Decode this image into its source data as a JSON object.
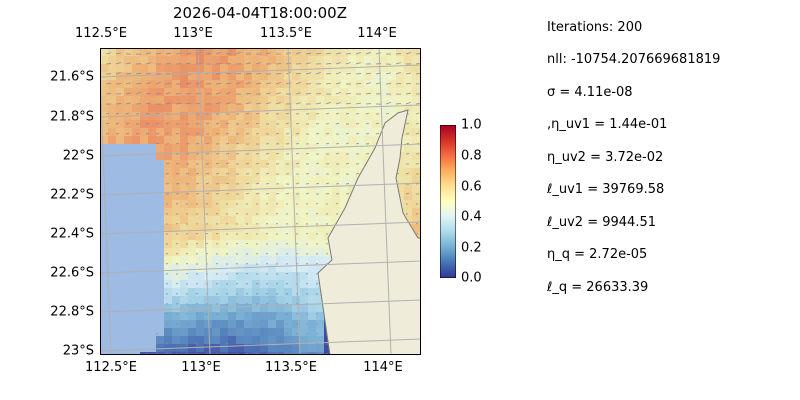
{
  "title": "2026-04-04T18:00:00Z",
  "map": {
    "lon_labels": [
      "112.5°E",
      "113°E",
      "113.5°E",
      "114°E"
    ],
    "lat_labels": [
      "21.6°S",
      "21.8°S",
      "22°S",
      "22.2°S",
      "22.4°S",
      "22.6°S",
      "22.8°S",
      "23°S"
    ],
    "colors": {
      "ocean": "#9dbbe3",
      "land": "#efedd9",
      "grid": "#b0b0b0",
      "arrow": "#8a8a9a"
    }
  },
  "colorbar": {
    "ticks": [
      "1.0",
      "0.8",
      "0.6",
      "0.4",
      "0.2",
      "0.0"
    ],
    "colormap": "RdYlBu_r",
    "range": [
      0.0,
      1.0
    ]
  },
  "info": [
    "Iterations: 200",
    "nll: -10754.207669681819",
    "σ = 4.11e-08",
    ",η_uv1 = 1.44e-01",
    "η_uv2 = 3.72e-02",
    "ℓ_uv1 = 39769.58",
    "ℓ_uv2 = 9944.51",
    "η_q = 2.72e-05",
    "ℓ_q = 26633.39"
  ]
}
